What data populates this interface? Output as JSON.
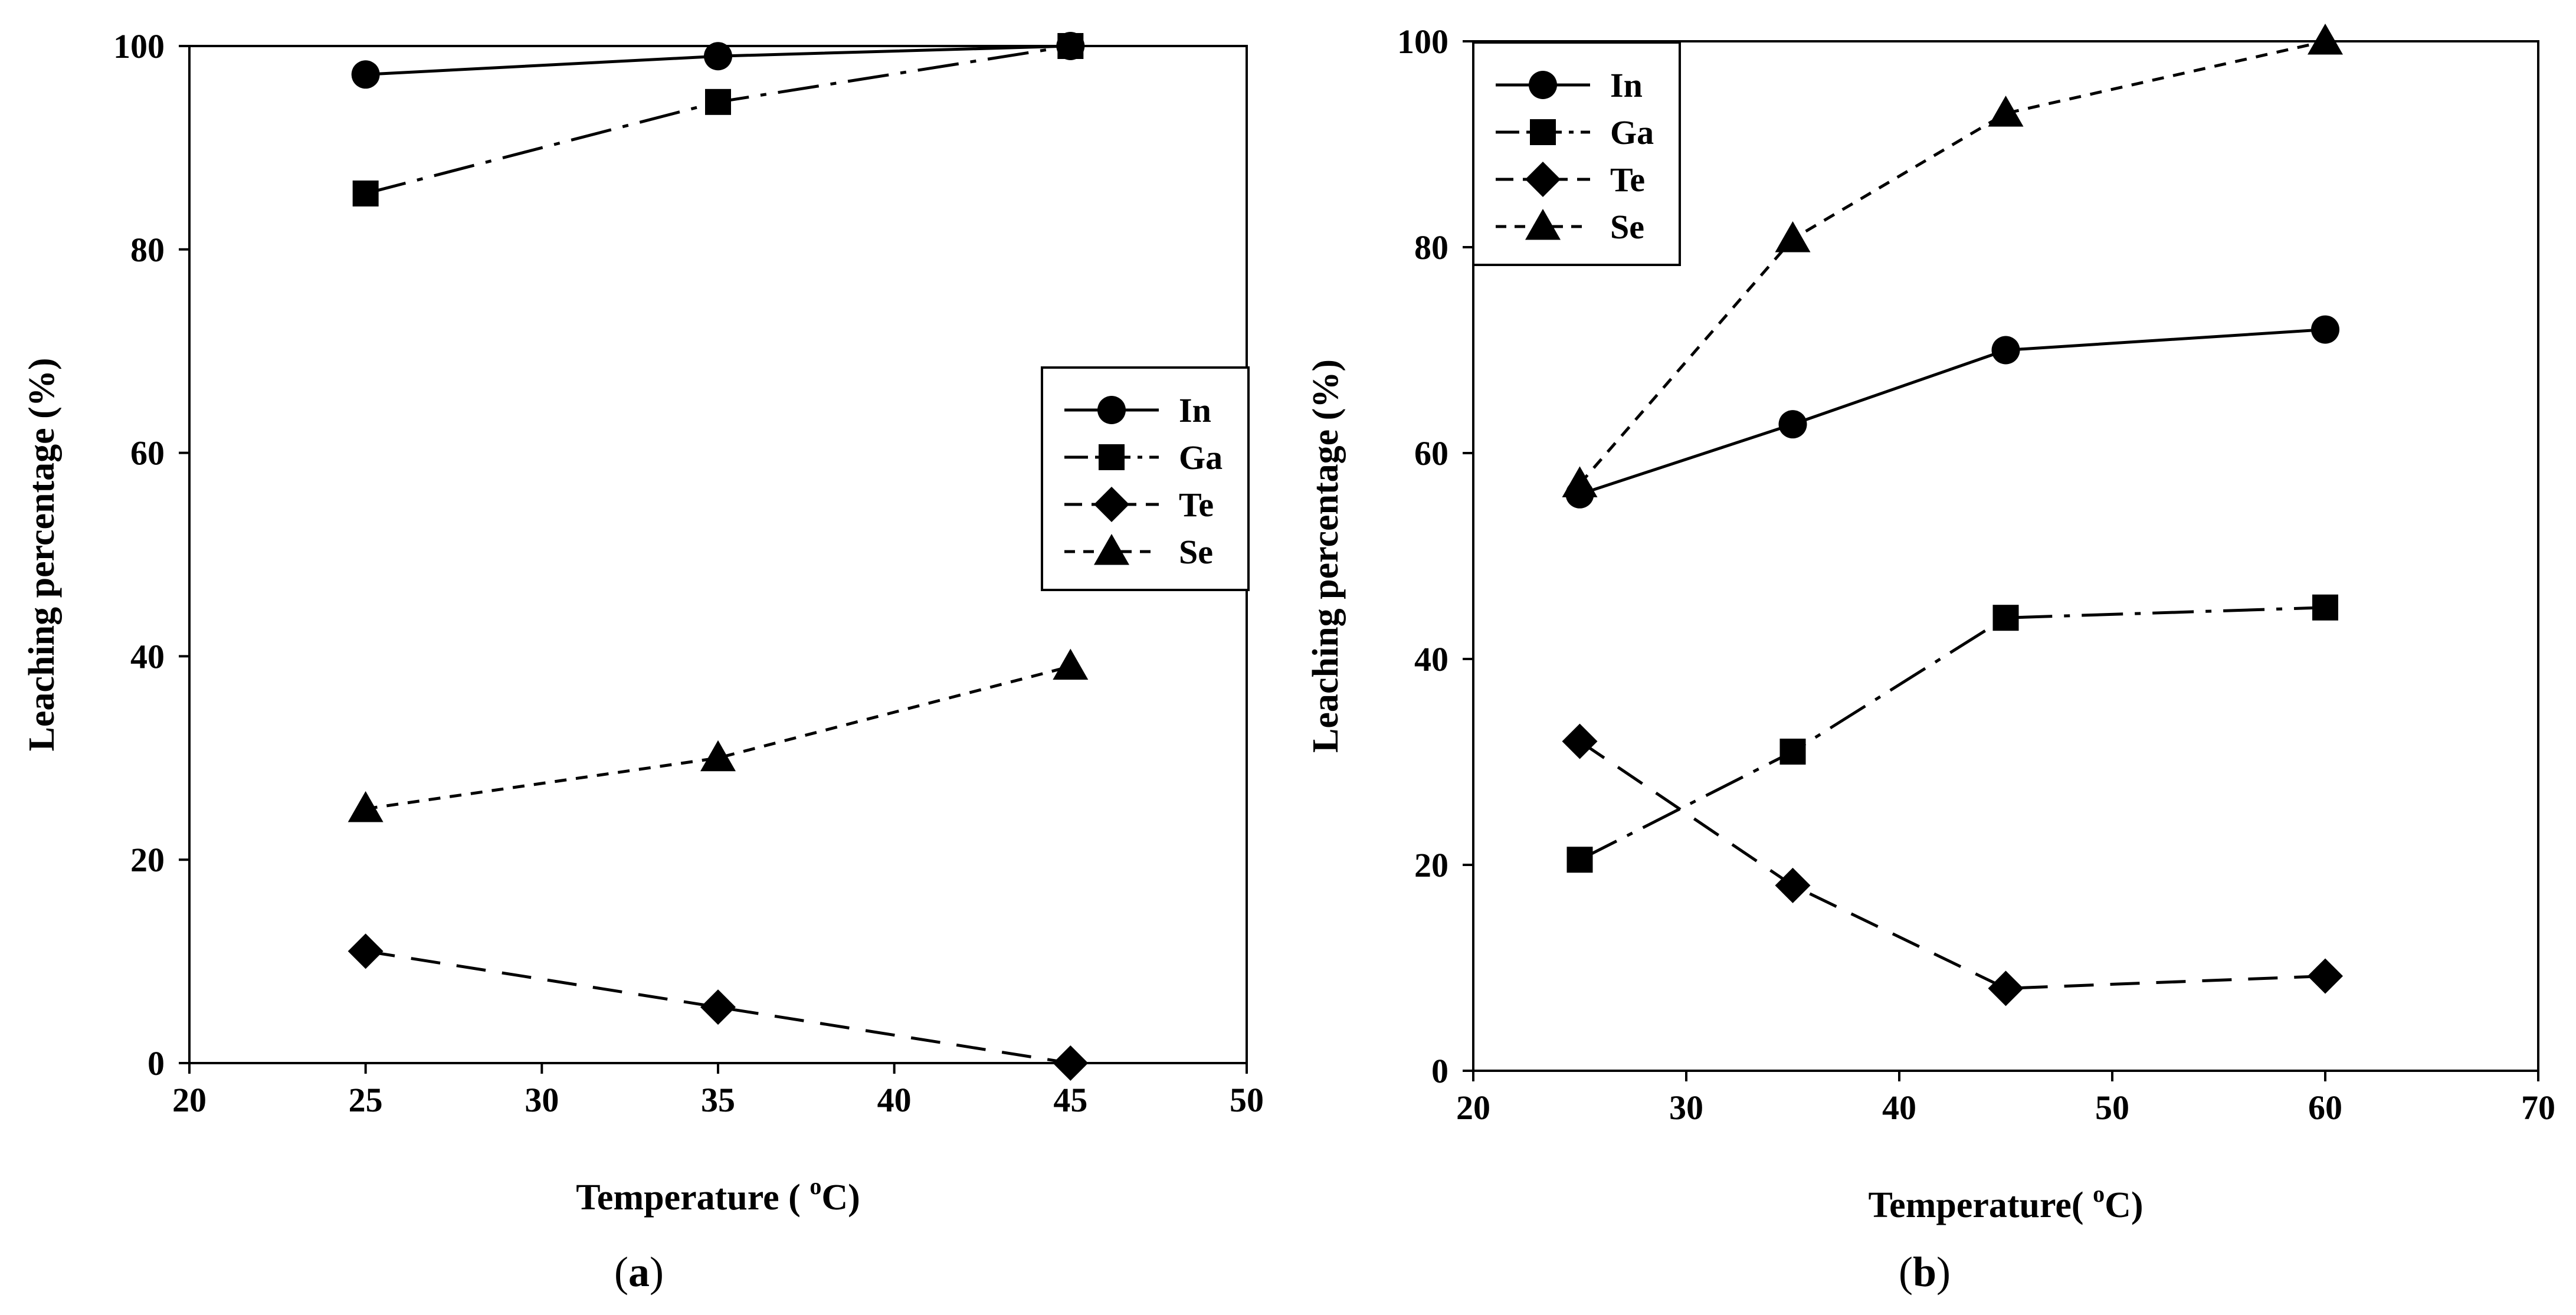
{
  "chart_data": [
    {
      "type": "line",
      "caption_letter": "a",
      "xlabel": "Temperature (",
      "xlabel_sup": "o",
      "xlabel_unit": "C)",
      "ylabel": "Leaching percentage (%)",
      "xlim": [
        20,
        50
      ],
      "ylim": [
        0,
        100
      ],
      "xticks": [
        20,
        25,
        30,
        35,
        40,
        45,
        50
      ],
      "yticks": [
        0,
        20,
        40,
        60,
        80,
        100
      ],
      "legend_position": "center-right",
      "series": [
        {
          "name": "In",
          "marker": "circle",
          "dash": "solid",
          "x": [
            25,
            35,
            45
          ],
          "y": [
            97.2,
            99.0,
            100.0
          ]
        },
        {
          "name": "Ga",
          "marker": "square",
          "dash": "longdash",
          "x": [
            25,
            35,
            45
          ],
          "y": [
            85.5,
            94.5,
            100.0
          ]
        },
        {
          "name": "Te",
          "marker": "diamond",
          "dash": "dash",
          "x": [
            25,
            35,
            45
          ],
          "y": [
            11.0,
            5.5,
            0.0
          ]
        },
        {
          "name": "Se",
          "marker": "triangle",
          "dash": "dot",
          "x": [
            25,
            35,
            45
          ],
          "y": [
            25.0,
            30.0,
            39.0
          ]
        }
      ]
    },
    {
      "type": "line",
      "caption_letter": "b",
      "xlabel": "Temperature(",
      "xlabel_sup": "o",
      "xlabel_unit": "C)",
      "ylabel": "Leaching percentage (%)",
      "xlim": [
        20,
        70
      ],
      "ylim": [
        0,
        100
      ],
      "xticks": [
        20,
        30,
        40,
        50,
        60,
        70
      ],
      "yticks": [
        0,
        20,
        40,
        60,
        80,
        100
      ],
      "legend_position": "top-left",
      "series": [
        {
          "name": "In",
          "marker": "circle",
          "dash": "solid",
          "x": [
            25,
            35,
            45,
            60
          ],
          "y": [
            56.0,
            62.8,
            70.0,
            72.0
          ]
        },
        {
          "name": "Ga",
          "marker": "square",
          "dash": "longdash",
          "x": [
            25,
            35,
            45,
            60
          ],
          "y": [
            20.5,
            31.0,
            44.0,
            45.0
          ]
        },
        {
          "name": "Te",
          "marker": "diamond",
          "dash": "dash",
          "x": [
            25,
            35,
            45,
            60
          ],
          "y": [
            32.0,
            18.0,
            8.0,
            9.2
          ]
        },
        {
          "name": "Se",
          "marker": "triangle",
          "dash": "dot",
          "x": [
            25,
            35,
            45,
            60
          ],
          "y": [
            57.0,
            80.8,
            93.0,
            100.0
          ]
        }
      ]
    }
  ]
}
